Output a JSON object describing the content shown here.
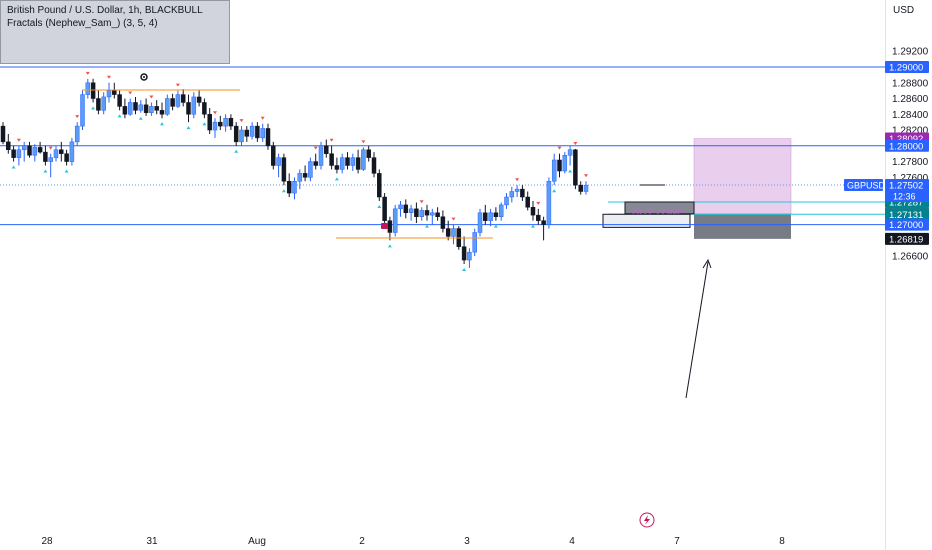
{
  "legend": {
    "title": "British Pound / U.S. Dollar, 1h, BLACKBULL",
    "indicator": "Fractals (Nephew_Sam_) (3, 5, 4)"
  },
  "price_axis": {
    "currency": "USD",
    "ticks": [
      "1.29200",
      "1.28800",
      "1.28600",
      "1.28400",
      "1.28200",
      "1.27800",
      "1.27600",
      "1.27400",
      "1.27200",
      "1.26600"
    ]
  },
  "time_axis": {
    "ticks": [
      "28",
      "31",
      "Aug",
      "2",
      "3",
      "4",
      "7",
      "8"
    ]
  },
  "price_labels": [
    {
      "text": "1.29000",
      "price": 1.29,
      "color": "#2962ff"
    },
    {
      "text": "1.28092",
      "price": 1.28092,
      "color": "#9c27b0"
    },
    {
      "text": "1.28000",
      "price": 1.28,
      "color": "#2962ff"
    },
    {
      "text": "1.27287",
      "price": 1.27287,
      "color": "#00838f"
    },
    {
      "text": "1.27137",
      "price": 1.27137,
      "color": "#546e7a"
    },
    {
      "text": "1.27131",
      "price": 1.27131,
      "color": "#00838f"
    },
    {
      "text": "1.27000",
      "price": 1.27,
      "color": "#2962ff"
    },
    {
      "text": "1.26819",
      "price": 1.26819,
      "color": "#131722"
    }
  ],
  "symbol_label": {
    "symbol": "GBPUSD",
    "price": "1.27502",
    "countdown": "12:36"
  },
  "annotations": {
    "buy_zone": "BUY ZONE"
  },
  "colors": {
    "up": "#2962ff",
    "up_fill": "#5b9cf6",
    "down": "#131722",
    "hline": "#2962ff",
    "fractal_up": "#ef5350",
    "fractal_down": "#26c6da",
    "orange": "#f7931e",
    "pink": "#e1bee7",
    "pink_border": "#ce93d8",
    "dark_zone": "#777b85",
    "cyan_line": "#26c6da"
  },
  "chart_data": {
    "type": "candlestick",
    "instrument": "GBPUSD",
    "timeframe": "1h",
    "ylim": [
      1.2645,
      1.2935
    ],
    "x_ticks": [
      "28",
      "31",
      "Aug",
      "2",
      "3",
      "4",
      "7",
      "8"
    ],
    "horizontal_lines": [
      1.29,
      1.28,
      1.27
    ],
    "last_price": 1.27502,
    "candles": [
      [
        1.2825,
        1.283,
        1.2802,
        1.2805
      ],
      [
        1.2805,
        1.2815,
        1.279,
        1.2795
      ],
      [
        1.2795,
        1.28,
        1.278,
        1.2785
      ],
      [
        1.2785,
        1.28,
        1.2775,
        1.2795
      ],
      [
        1.2795,
        1.2805,
        1.278,
        1.28
      ],
      [
        1.28,
        1.2805,
        1.2785,
        1.2788
      ],
      [
        1.2788,
        1.2802,
        1.278,
        1.2798
      ],
      [
        1.2798,
        1.2805,
        1.279,
        1.2792
      ],
      [
        1.2792,
        1.28,
        1.2775,
        1.278
      ],
      [
        1.278,
        1.279,
        1.276,
        1.2785
      ],
      [
        1.2785,
        1.28,
        1.278,
        1.2795
      ],
      [
        1.2795,
        1.2805,
        1.278,
        1.279
      ],
      [
        1.279,
        1.2795,
        1.2775,
        1.278
      ],
      [
        1.278,
        1.281,
        1.2775,
        1.2805
      ],
      [
        1.2805,
        1.283,
        1.28,
        1.2825
      ],
      [
        1.2825,
        1.287,
        1.282,
        1.2865
      ],
      [
        1.2865,
        1.2885,
        1.286,
        1.288
      ],
      [
        1.288,
        1.2885,
        1.2855,
        1.286
      ],
      [
        1.286,
        1.287,
        1.284,
        1.2845
      ],
      [
        1.2845,
        1.2868,
        1.284,
        1.2862
      ],
      [
        1.2862,
        1.288,
        1.2855,
        1.287
      ],
      [
        1.287,
        1.288,
        1.286,
        1.2865
      ],
      [
        1.2865,
        1.287,
        1.2845,
        1.285
      ],
      [
        1.285,
        1.286,
        1.2835,
        1.284
      ],
      [
        1.284,
        1.286,
        1.2838,
        1.2855
      ],
      [
        1.2855,
        1.2862,
        1.284,
        1.2845
      ],
      [
        1.2845,
        1.2858,
        1.2842,
        1.2852
      ],
      [
        1.2852,
        1.286,
        1.2838,
        1.2842
      ],
      [
        1.2842,
        1.2855,
        1.2838,
        1.285
      ],
      [
        1.285,
        1.2858,
        1.284,
        1.2845
      ],
      [
        1.2845,
        1.2855,
        1.2835,
        1.284
      ],
      [
        1.284,
        1.2865,
        1.2838,
        1.286
      ],
      [
        1.286,
        1.2866,
        1.2845,
        1.285
      ],
      [
        1.285,
        1.287,
        1.2848,
        1.2865
      ],
      [
        1.2865,
        1.2872,
        1.285,
        1.2855
      ],
      [
        1.2855,
        1.2865,
        1.283,
        1.284
      ],
      [
        1.284,
        1.2868,
        1.2835,
        1.2862
      ],
      [
        1.2862,
        1.287,
        1.285,
        1.2855
      ],
      [
        1.2855,
        1.286,
        1.2835,
        1.284
      ],
      [
        1.284,
        1.2848,
        1.2815,
        1.282
      ],
      [
        1.282,
        1.2835,
        1.281,
        1.283
      ],
      [
        1.283,
        1.2838,
        1.282,
        1.2825
      ],
      [
        1.2825,
        1.284,
        1.2818,
        1.2835
      ],
      [
        1.2835,
        1.284,
        1.282,
        1.2825
      ],
      [
        1.2825,
        1.283,
        1.28,
        1.2805
      ],
      [
        1.2805,
        1.2825,
        1.28,
        1.282
      ],
      [
        1.282,
        1.2825,
        1.2805,
        1.2812
      ],
      [
        1.2812,
        1.283,
        1.2808,
        1.2825
      ],
      [
        1.2825,
        1.283,
        1.2805,
        1.281
      ],
      [
        1.281,
        1.2828,
        1.2805,
        1.2822
      ],
      [
        1.2822,
        1.2828,
        1.2795,
        1.28
      ],
      [
        1.28,
        1.2805,
        1.277,
        1.2775
      ],
      [
        1.2775,
        1.279,
        1.276,
        1.2785
      ],
      [
        1.2785,
        1.279,
        1.275,
        1.2755
      ],
      [
        1.2755,
        1.2765,
        1.2735,
        1.274
      ],
      [
        1.274,
        1.276,
        1.2732,
        1.2755
      ],
      [
        1.2755,
        1.277,
        1.2745,
        1.2765
      ],
      [
        1.2765,
        1.2775,
        1.2755,
        1.276
      ],
      [
        1.276,
        1.2785,
        1.2755,
        1.278
      ],
      [
        1.278,
        1.279,
        1.277,
        1.2775
      ],
      [
        1.2775,
        1.2805,
        1.277,
        1.28
      ],
      [
        1.28,
        1.2808,
        1.2785,
        1.279
      ],
      [
        1.279,
        1.28,
        1.277,
        1.2775
      ],
      [
        1.2775,
        1.2785,
        1.2765,
        1.277
      ],
      [
        1.277,
        1.279,
        1.2765,
        1.2785
      ],
      [
        1.2785,
        1.2792,
        1.277,
        1.2775
      ],
      [
        1.2775,
        1.279,
        1.2768,
        1.2785
      ],
      [
        1.2785,
        1.2795,
        1.2765,
        1.277
      ],
      [
        1.277,
        1.2798,
        1.2768,
        1.2795
      ],
      [
        1.2795,
        1.28,
        1.278,
        1.2785
      ],
      [
        1.2785,
        1.2792,
        1.276,
        1.2765
      ],
      [
        1.2765,
        1.277,
        1.273,
        1.2735
      ],
      [
        1.2735,
        1.274,
        1.27,
        1.2705
      ],
      [
        1.2705,
        1.271,
        1.268,
        1.269
      ],
      [
        1.269,
        1.2725,
        1.2685,
        1.272
      ],
      [
        1.272,
        1.273,
        1.271,
        1.2725
      ],
      [
        1.2725,
        1.2732,
        1.2708,
        1.2715
      ],
      [
        1.2715,
        1.2725,
        1.2705,
        1.272
      ],
      [
        1.272,
        1.2728,
        1.2702,
        1.271
      ],
      [
        1.271,
        1.2722,
        1.2705,
        1.2718
      ],
      [
        1.2718,
        1.2725,
        1.2705,
        1.2712
      ],
      [
        1.2712,
        1.272,
        1.27,
        1.2715
      ],
      [
        1.2715,
        1.2722,
        1.2705,
        1.271
      ],
      [
        1.271,
        1.2718,
        1.269,
        1.2695
      ],
      [
        1.2695,
        1.2705,
        1.268,
        1.2685
      ],
      [
        1.2685,
        1.27,
        1.2675,
        1.2695
      ],
      [
        1.2695,
        1.2698,
        1.2668,
        1.2672
      ],
      [
        1.2672,
        1.2685,
        1.265,
        1.2655
      ],
      [
        1.2655,
        1.267,
        1.2645,
        1.2665
      ],
      [
        1.2665,
        1.2695,
        1.266,
        1.269
      ],
      [
        1.269,
        1.272,
        1.2685,
        1.2715
      ],
      [
        1.2715,
        1.2725,
        1.27,
        1.2705
      ],
      [
        1.2705,
        1.272,
        1.2698,
        1.2715
      ],
      [
        1.2715,
        1.2722,
        1.2705,
        1.271
      ],
      [
        1.271,
        1.2728,
        1.2705,
        1.2725
      ],
      [
        1.2725,
        1.274,
        1.272,
        1.2735
      ],
      [
        1.2735,
        1.2748,
        1.2728,
        1.2742
      ],
      [
        1.2742,
        1.275,
        1.2735,
        1.2745
      ],
      [
        1.2745,
        1.275,
        1.273,
        1.2735
      ],
      [
        1.2735,
        1.2742,
        1.2718,
        1.2722
      ],
      [
        1.2722,
        1.273,
        1.2705,
        1.2712
      ],
      [
        1.2712,
        1.272,
        1.27,
        1.2705
      ],
      [
        1.2705,
        1.271,
        1.268,
        1.27
      ],
      [
        1.27,
        1.276,
        1.2695,
        1.2755
      ],
      [
        1.2755,
        1.279,
        1.275,
        1.2782
      ],
      [
        1.2782,
        1.279,
        1.276,
        1.2768
      ],
      [
        1.2768,
        1.2792,
        1.2765,
        1.2788
      ],
      [
        1.2788,
        1.28,
        1.2775,
        1.2795
      ],
      [
        1.2795,
        1.2796,
        1.2745,
        1.275
      ],
      [
        1.275,
        1.2755,
        1.2738,
        1.2742
      ],
      [
        1.2742,
        1.2755,
        1.2738,
        1.275
      ]
    ],
    "fractals_up_at": [
      3,
      9,
      14,
      16,
      20,
      24,
      28,
      33,
      40,
      45,
      49,
      59,
      62,
      68,
      79,
      85,
      97,
      101,
      105,
      108,
      110
    ],
    "fractals_down_at": [
      2,
      8,
      12,
      17,
      22,
      26,
      30,
      35,
      38,
      44,
      53,
      63,
      71,
      73,
      80,
      87,
      93,
      100,
      104,
      107
    ],
    "annotations": [
      {
        "type": "zone",
        "label": "BUY ZONE",
        "from": 1.27137,
        "to": 1.27287
      },
      {
        "type": "zone",
        "from": 1.27,
        "to": 1.27131
      },
      {
        "type": "target_box",
        "from": 1.27137,
        "to": 1.28092
      },
      {
        "type": "stop_box",
        "from": 1.26819,
        "to": 1.27137
      }
    ]
  }
}
